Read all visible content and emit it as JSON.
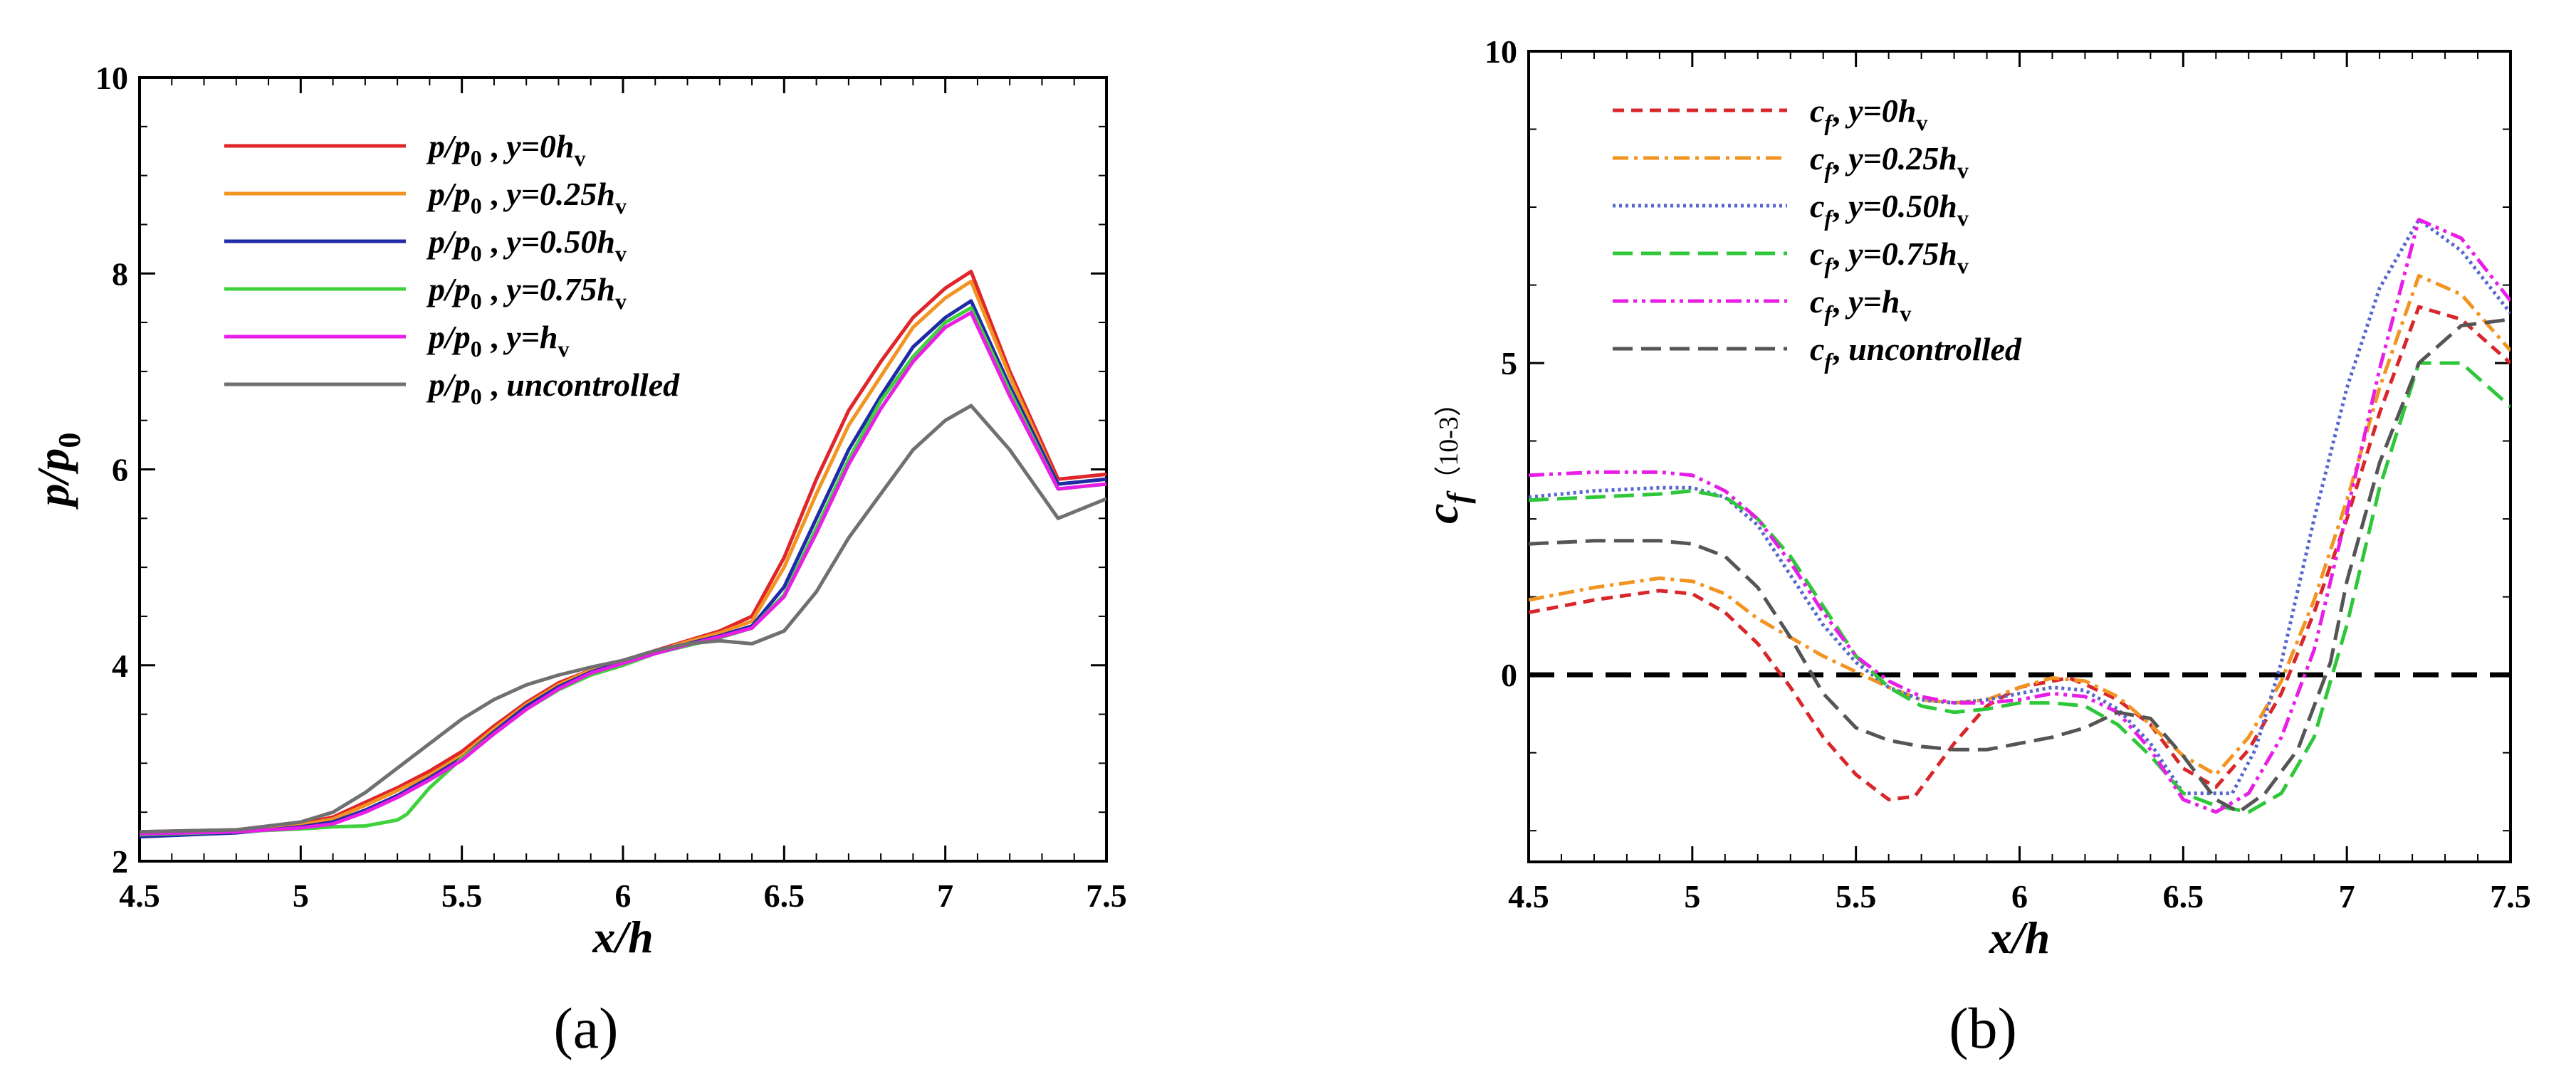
{
  "figure": {
    "panel_a_caption": "(a)",
    "panel_b_caption": "(b)"
  },
  "chart_data": [
    {
      "id": "a",
      "type": "line",
      "title": "",
      "xlabel": "x/h",
      "ylabel": "p/p0",
      "xlim": [
        4.5,
        7.5
      ],
      "ylim": [
        2,
        10
      ],
      "xticks": [
        4.5,
        5,
        5.5,
        6,
        6.5,
        7,
        7.5
      ],
      "yticks": [
        2,
        4,
        6,
        8,
        10
      ],
      "xtick_labels": [
        "4.5",
        "5",
        "5.5",
        "6",
        "6.5",
        "7",
        "7.5"
      ],
      "ytick_labels": [
        "2",
        "4",
        "6",
        "8",
        "10"
      ],
      "legend_position": "top-left",
      "series": [
        {
          "name": "p/p0 , y=0hv",
          "label_parts": {
            "var": "p",
            "sub": "0",
            "pos": "y=0",
            "h": "h",
            "hsub": "v"
          },
          "color": "#e0262a",
          "dash": "solid",
          "x": [
            4.5,
            4.8,
            5.0,
            5.1,
            5.2,
            5.3,
            5.4,
            5.5,
            5.6,
            5.7,
            5.8,
            5.9,
            6.0,
            6.1,
            6.2,
            6.3,
            6.4,
            6.5,
            6.6,
            6.7,
            6.8,
            6.9,
            7.0,
            7.08,
            7.2,
            7.35,
            7.5
          ],
          "y": [
            2.3,
            2.32,
            2.38,
            2.45,
            2.6,
            2.75,
            2.92,
            3.12,
            3.38,
            3.62,
            3.82,
            3.95,
            4.05,
            4.15,
            4.25,
            4.35,
            4.5,
            5.1,
            5.9,
            6.6,
            7.1,
            7.55,
            7.85,
            8.02,
            7.0,
            5.9,
            5.95
          ]
        },
        {
          "name": "p/p0 , y=0.25hv",
          "label_parts": {
            "var": "p",
            "sub": "0",
            "pos": "y=0.25",
            "h": "h",
            "hsub": "v"
          },
          "color": "#f29422",
          "dash": "solid",
          "x": [
            4.5,
            4.8,
            5.0,
            5.1,
            5.2,
            5.3,
            5.4,
            5.5,
            5.6,
            5.7,
            5.8,
            5.9,
            6.0,
            6.1,
            6.2,
            6.3,
            6.4,
            6.5,
            6.6,
            6.7,
            6.8,
            6.9,
            7.0,
            7.08,
            7.2,
            7.35,
            7.5
          ],
          "y": [
            2.28,
            2.31,
            2.37,
            2.43,
            2.57,
            2.72,
            2.88,
            3.08,
            3.35,
            3.6,
            3.8,
            3.95,
            4.04,
            4.14,
            4.24,
            4.33,
            4.45,
            5.0,
            5.75,
            6.45,
            6.95,
            7.45,
            7.75,
            7.92,
            6.95,
            5.85,
            5.9
          ]
        },
        {
          "name": "p/p0 , y=0.50hv",
          "label_parts": {
            "var": "p",
            "sub": "0",
            "pos": "y=0.50",
            "h": "h",
            "hsub": "v"
          },
          "color": "#1f2aa8",
          "dash": "solid",
          "x": [
            4.5,
            4.8,
            5.0,
            5.1,
            5.2,
            5.3,
            5.4,
            5.5,
            5.6,
            5.7,
            5.8,
            5.9,
            6.0,
            6.1,
            6.2,
            6.3,
            6.4,
            6.5,
            6.6,
            6.7,
            6.8,
            6.9,
            7.0,
            7.08,
            7.2,
            7.35,
            7.5
          ],
          "y": [
            2.25,
            2.29,
            2.35,
            2.4,
            2.52,
            2.67,
            2.85,
            3.05,
            3.32,
            3.58,
            3.78,
            3.93,
            4.03,
            4.13,
            4.22,
            4.3,
            4.4,
            4.8,
            5.5,
            6.2,
            6.75,
            7.25,
            7.55,
            7.72,
            6.85,
            5.85,
            5.9
          ]
        },
        {
          "name": "p/p0 , y=0.75hv",
          "label_parts": {
            "var": "p",
            "sub": "0",
            "pos": "y=0.75",
            "h": "h",
            "hsub": "v"
          },
          "color": "#3fd23c",
          "dash": "solid",
          "x": [
            4.5,
            4.8,
            5.0,
            5.1,
            5.2,
            5.3,
            5.33,
            5.4,
            5.5,
            5.6,
            5.7,
            5.8,
            5.9,
            6.0,
            6.1,
            6.2,
            6.3,
            6.4,
            6.5,
            6.6,
            6.7,
            6.8,
            6.9,
            7.0,
            7.08,
            7.2,
            7.35,
            7.5
          ],
          "y": [
            2.27,
            2.3,
            2.33,
            2.35,
            2.36,
            2.42,
            2.48,
            2.75,
            3.05,
            3.3,
            3.55,
            3.75,
            3.9,
            4.0,
            4.12,
            4.2,
            4.28,
            4.38,
            4.72,
            5.4,
            6.1,
            6.7,
            7.15,
            7.5,
            7.65,
            6.8,
            5.8,
            5.85
          ]
        },
        {
          "name": "p/p0 , y=hv",
          "label_parts": {
            "var": "p",
            "sub": "0",
            "pos": "y=",
            "h": "h",
            "hsub": "v"
          },
          "color": "#e81ee6",
          "dash": "solid",
          "x": [
            4.5,
            4.8,
            5.0,
            5.1,
            5.2,
            5.3,
            5.4,
            5.5,
            5.6,
            5.7,
            5.8,
            5.9,
            6.0,
            6.1,
            6.2,
            6.3,
            6.4,
            6.5,
            6.6,
            6.7,
            6.8,
            6.9,
            7.0,
            7.08,
            7.2,
            7.35,
            7.5
          ],
          "y": [
            2.28,
            2.3,
            2.34,
            2.38,
            2.5,
            2.65,
            2.83,
            3.03,
            3.3,
            3.55,
            3.76,
            3.92,
            4.02,
            4.12,
            4.21,
            4.29,
            4.38,
            4.7,
            5.35,
            6.05,
            6.62,
            7.1,
            7.45,
            7.6,
            6.75,
            5.8,
            5.85
          ]
        },
        {
          "name": "p/p0 , uncontrolled",
          "label_parts": {
            "var": "p",
            "sub": "0",
            "pos": "uncontrolled",
            "h": "",
            "hsub": ""
          },
          "color": "#707070",
          "dash": "solid",
          "x": [
            4.5,
            4.8,
            5.0,
            5.1,
            5.2,
            5.3,
            5.4,
            5.5,
            5.6,
            5.7,
            5.8,
            5.9,
            6.0,
            6.1,
            6.2,
            6.3,
            6.4,
            6.5,
            6.6,
            6.7,
            6.8,
            6.9,
            7.0,
            7.08,
            7.2,
            7.35,
            7.5
          ],
          "y": [
            2.3,
            2.32,
            2.4,
            2.5,
            2.7,
            2.95,
            3.2,
            3.45,
            3.65,
            3.8,
            3.9,
            3.98,
            4.05,
            4.15,
            4.22,
            4.25,
            4.22,
            4.35,
            4.75,
            5.3,
            5.75,
            6.2,
            6.5,
            6.65,
            6.2,
            5.5,
            5.7
          ]
        }
      ]
    },
    {
      "id": "b",
      "type": "line",
      "title": "",
      "xlabel": "x/h",
      "ylabel": "cf",
      "ylabel_unit": "（10-3）",
      "xlim": [
        4.5,
        7.5
      ],
      "ylim": [
        -3,
        10
      ],
      "xticks": [
        4.5,
        5,
        5.5,
        6,
        6.5,
        7,
        7.5
      ],
      "yticks": [
        0,
        5,
        10
      ],
      "xtick_labels": [
        "4.5",
        "5",
        "5.5",
        "6",
        "6.5",
        "7",
        "7.5"
      ],
      "ytick_labels": [
        "0",
        "5",
        "10"
      ],
      "reference_line": {
        "y": 0,
        "style": "dashed",
        "color": "#000000"
      },
      "legend_position": "top-left",
      "series": [
        {
          "name": "cf, y=0hv",
          "label_parts": {
            "var": "c",
            "sub": "f",
            "pos": "y=0",
            "h": "h",
            "hsub": "v"
          },
          "color": "#d9262a",
          "dash": "short-dash",
          "x": [
            4.5,
            4.7,
            4.9,
            5.0,
            5.1,
            5.2,
            5.3,
            5.4,
            5.5,
            5.6,
            5.68,
            5.8,
            5.9,
            6.0,
            6.1,
            6.15,
            6.2,
            6.3,
            6.4,
            6.5,
            6.6,
            6.7,
            6.8,
            6.9,
            7.0,
            7.1,
            7.22,
            7.35,
            7.5
          ],
          "y": [
            1.0,
            1.2,
            1.35,
            1.3,
            1.0,
            0.5,
            -0.2,
            -1.0,
            -1.6,
            -2.0,
            -1.95,
            -1.1,
            -0.5,
            -0.2,
            -0.1,
            -0.05,
            -0.15,
            -0.4,
            -0.8,
            -1.5,
            -1.8,
            -1.2,
            -0.3,
            1.0,
            2.5,
            4.2,
            5.9,
            5.7,
            5.0
          ]
        },
        {
          "name": "cf, y=0.25hv",
          "label_parts": {
            "var": "c",
            "sub": "f",
            "pos": "y=0.25",
            "h": "h",
            "hsub": "v"
          },
          "color": "#f29422",
          "dash": "dash-dot",
          "x": [
            4.5,
            4.7,
            4.9,
            5.0,
            5.1,
            5.2,
            5.3,
            5.4,
            5.5,
            5.6,
            5.7,
            5.8,
            5.9,
            6.0,
            6.1,
            6.2,
            6.3,
            6.4,
            6.5,
            6.6,
            6.7,
            6.8,
            6.9,
            7.0,
            7.1,
            7.22,
            7.35,
            7.5
          ],
          "y": [
            1.2,
            1.4,
            1.55,
            1.5,
            1.3,
            0.9,
            0.6,
            0.3,
            0.05,
            -0.2,
            -0.4,
            -0.45,
            -0.4,
            -0.2,
            -0.05,
            -0.1,
            -0.35,
            -0.8,
            -1.3,
            -1.6,
            -1.0,
            -0.1,
            1.2,
            2.8,
            4.6,
            6.4,
            6.1,
            5.2
          ]
        },
        {
          "name": "cf, y=0.50hv",
          "label_parts": {
            "var": "c",
            "sub": "f",
            "pos": "y=0.50",
            "h": "h",
            "hsub": "v"
          },
          "color": "#5566cc",
          "dash": "dotted",
          "x": [
            4.5,
            4.7,
            4.9,
            5.0,
            5.1,
            5.2,
            5.3,
            5.4,
            5.5,
            5.6,
            5.7,
            5.8,
            5.9,
            6.0,
            6.1,
            6.2,
            6.3,
            6.4,
            6.5,
            6.58,
            6.65,
            6.72,
            6.8,
            6.9,
            7.0,
            7.1,
            7.22,
            7.35,
            7.5
          ],
          "y": [
            2.85,
            2.95,
            3.0,
            3.0,
            2.85,
            2.4,
            1.6,
            0.8,
            0.2,
            -0.2,
            -0.4,
            -0.45,
            -0.4,
            -0.3,
            -0.2,
            -0.25,
            -0.55,
            -1.1,
            -1.9,
            -1.9,
            -1.9,
            -1.2,
            0.2,
            2.5,
            4.6,
            6.2,
            7.3,
            6.8,
            5.8
          ]
        },
        {
          "name": "cf, y=0.75hv",
          "label_parts": {
            "var": "c",
            "sub": "f",
            "pos": "y=0.75",
            "h": "h",
            "hsub": "v"
          },
          "color": "#2fc73a",
          "dash": "long-dash",
          "x": [
            4.5,
            4.7,
            4.9,
            5.0,
            5.1,
            5.2,
            5.3,
            5.4,
            5.5,
            5.6,
            5.7,
            5.8,
            5.9,
            6.0,
            6.1,
            6.2,
            6.3,
            6.4,
            6.5,
            6.6,
            6.7,
            6.8,
            6.9,
            7.0,
            7.1,
            7.22,
            7.35,
            7.5
          ],
          "y": [
            2.8,
            2.85,
            2.9,
            2.95,
            2.85,
            2.5,
            1.9,
            1.1,
            0.3,
            -0.2,
            -0.5,
            -0.6,
            -0.55,
            -0.45,
            -0.45,
            -0.5,
            -0.8,
            -1.3,
            -1.9,
            -2.1,
            -2.2,
            -1.9,
            -1.0,
            0.8,
            3.0,
            5.0,
            5.0,
            4.3
          ]
        },
        {
          "name": "cf, y=hv",
          "label_parts": {
            "var": "c",
            "sub": "f",
            "pos": "y=",
            "h": "h",
            "hsub": "v"
          },
          "color": "#e81ee6",
          "dash": "dash-dot-dot",
          "x": [
            4.5,
            4.7,
            4.9,
            5.0,
            5.1,
            5.2,
            5.3,
            5.4,
            5.5,
            5.6,
            5.7,
            5.8,
            5.9,
            6.0,
            6.1,
            6.2,
            6.3,
            6.4,
            6.5,
            6.6,
            6.7,
            6.8,
            6.9,
            7.0,
            7.1,
            7.22,
            7.35,
            7.5
          ],
          "y": [
            3.2,
            3.25,
            3.25,
            3.2,
            2.95,
            2.5,
            1.8,
            1.0,
            0.3,
            -0.1,
            -0.35,
            -0.45,
            -0.45,
            -0.4,
            -0.3,
            -0.35,
            -0.6,
            -1.2,
            -2.0,
            -2.2,
            -1.9,
            -1.0,
            0.4,
            2.6,
            4.9,
            7.3,
            7.0,
            6.0
          ]
        },
        {
          "name": "cf, uncontrolled",
          "label_parts": {
            "var": "c",
            "sub": "f",
            "pos": "uncontrolled",
            "h": "",
            "hsub": ""
          },
          "color": "#555555",
          "dash": "long-dash",
          "x": [
            4.5,
            4.7,
            4.9,
            5.0,
            5.1,
            5.2,
            5.3,
            5.4,
            5.5,
            5.6,
            5.7,
            5.8,
            5.9,
            6.0,
            6.1,
            6.2,
            6.3,
            6.4,
            6.5,
            6.6,
            6.67,
            6.75,
            6.85,
            6.95,
            7.0,
            7.1,
            7.22,
            7.35,
            7.5
          ],
          "y": [
            2.1,
            2.15,
            2.15,
            2.1,
            1.9,
            1.4,
            0.6,
            -0.3,
            -0.85,
            -1.05,
            -1.15,
            -1.2,
            -1.2,
            -1.1,
            -1.0,
            -0.85,
            -0.6,
            -0.7,
            -1.3,
            -2.0,
            -2.2,
            -1.9,
            -1.2,
            0.2,
            1.5,
            3.4,
            5.0,
            5.6,
            5.7
          ]
        }
      ]
    }
  ]
}
